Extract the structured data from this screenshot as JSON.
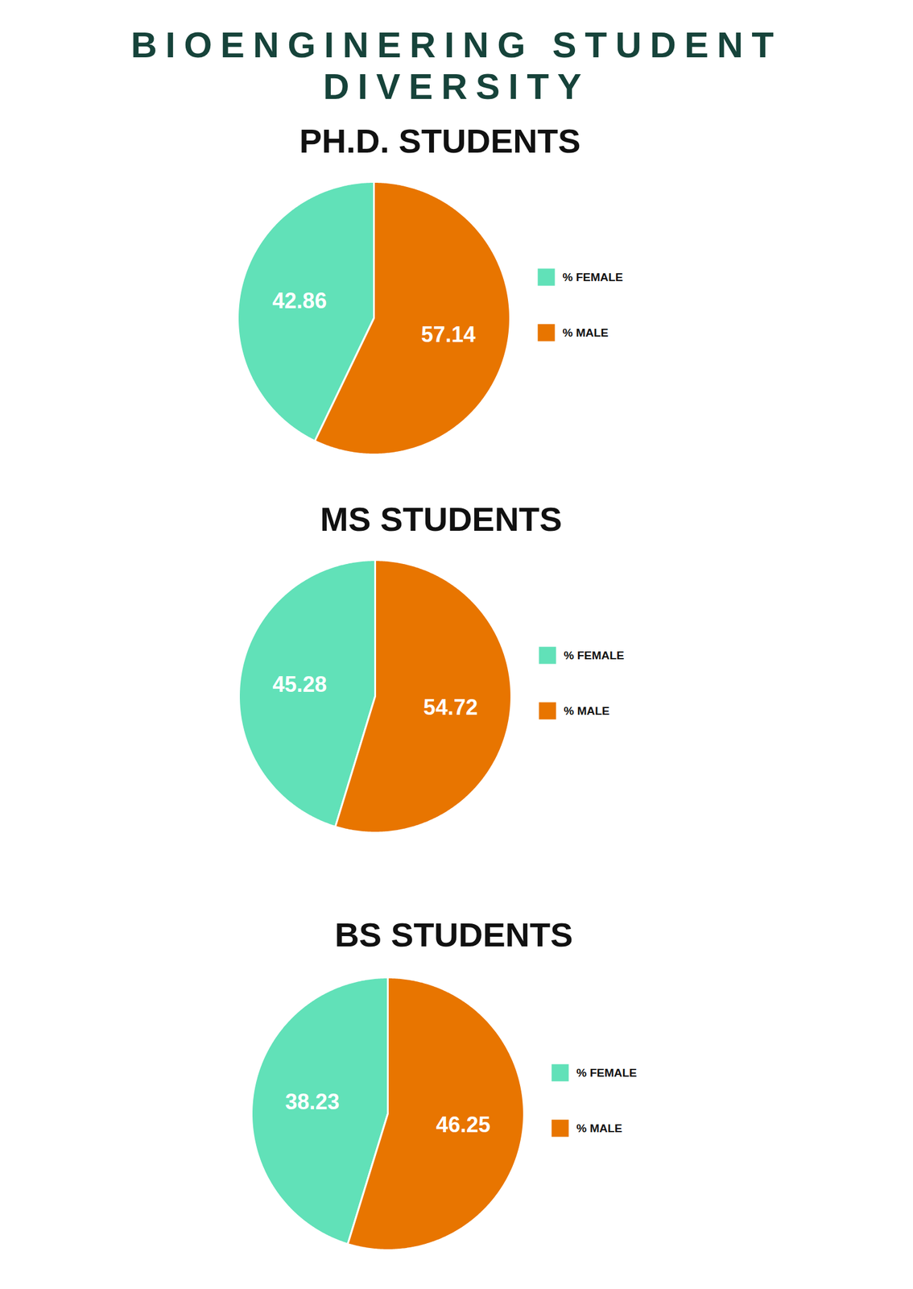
{
  "title": "BIOENGINERING STUDENT DIVERSITY",
  "chart_data": [
    {
      "type": "pie",
      "title": "PH.D. STUDENTS",
      "categories": [
        "% FEMALE",
        "% MALE"
      ],
      "values": [
        42.86,
        57.14
      ],
      "colors": [
        "#61e1b8",
        "#e87500"
      ],
      "data_labels": true,
      "legend": "right"
    },
    {
      "type": "pie",
      "title": "MS STUDENTS",
      "categories": [
        "% FEMALE",
        "% MALE"
      ],
      "values": [
        45.28,
        54.72
      ],
      "colors": [
        "#61e1b8",
        "#e87500"
      ],
      "data_labels": true,
      "legend": "right"
    },
    {
      "type": "pie",
      "title": "BS STUDENTS",
      "categories": [
        "% FEMALE",
        "% MALE"
      ],
      "values": [
        38.23,
        46.25
      ],
      "colors": [
        "#61e1b8",
        "#e87500"
      ],
      "data_labels": true,
      "legend": "right"
    }
  ]
}
